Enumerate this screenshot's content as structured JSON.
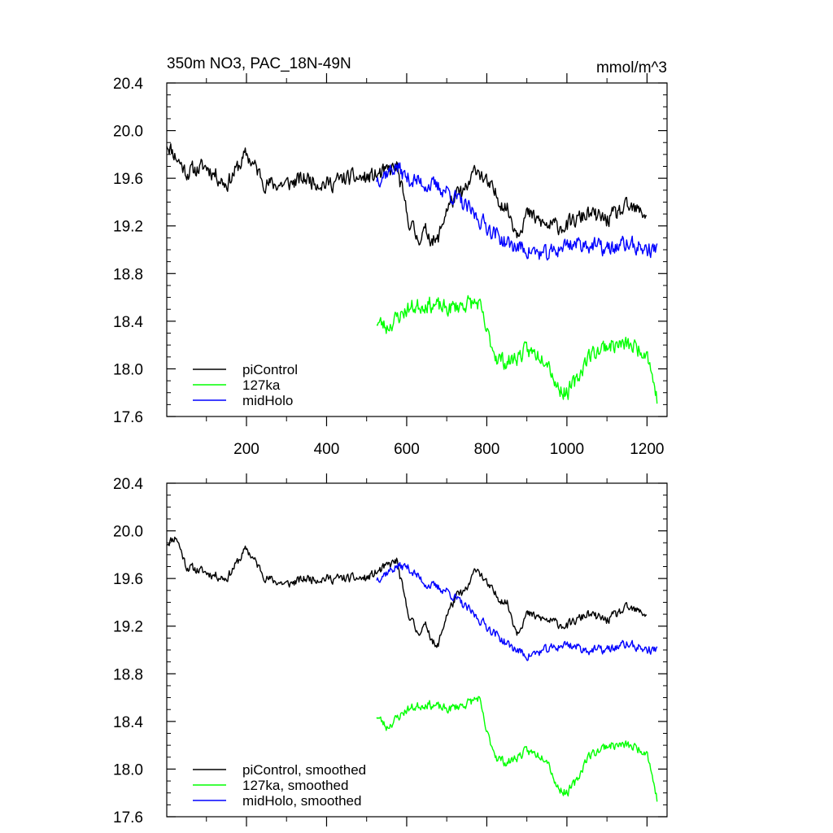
{
  "chart_data": [
    {
      "type": "line",
      "title": "350m NO3, PAC_18N-49N",
      "units": "mmol/m^3",
      "xlim": [
        1,
        1250
      ],
      "ylim": [
        17.6,
        20.4
      ],
      "yticks": [
        17.6,
        18.0,
        18.4,
        18.8,
        19.2,
        19.6,
        20.0,
        20.4
      ],
      "ytick_labels": [
        "17.6",
        "18.0",
        "18.4",
        "18.8",
        "19.2",
        "19.6",
        "20.0",
        "20.4"
      ],
      "xticks": [
        200,
        400,
        600,
        800,
        1000,
        1200
      ],
      "xtick_labels": [
        "200",
        "400",
        "600",
        "800",
        "1000",
        "1200"
      ],
      "legend_position": "bottom-left",
      "series": [
        {
          "name": "piControl",
          "color": "#000000",
          "x_range": [
            1,
            1200
          ],
          "knots": [
            [
              1,
              19.9
            ],
            [
              50,
              19.65
            ],
            [
              100,
              19.7
            ],
            [
              150,
              19.55
            ],
            [
              200,
              19.8
            ],
            [
              250,
              19.55
            ],
            [
              300,
              19.55
            ],
            [
              350,
              19.6
            ],
            [
              400,
              19.55
            ],
            [
              450,
              19.6
            ],
            [
              500,
              19.6
            ],
            [
              550,
              19.65
            ],
            [
              575,
              19.7
            ],
            [
              600,
              19.3
            ],
            [
              625,
              19.1
            ],
            [
              650,
              19.15
            ],
            [
              675,
              19.05
            ],
            [
              700,
              19.35
            ],
            [
              725,
              19.45
            ],
            [
              750,
              19.5
            ],
            [
              775,
              19.7
            ],
            [
              800,
              19.55
            ],
            [
              825,
              19.45
            ],
            [
              850,
              19.35
            ],
            [
              875,
              19.15
            ],
            [
              900,
              19.3
            ],
            [
              950,
              19.2
            ],
            [
              1000,
              19.2
            ],
            [
              1050,
              19.3
            ],
            [
              1100,
              19.25
            ],
            [
              1150,
              19.35
            ],
            [
              1200,
              19.3
            ]
          ],
          "noise": 0.11,
          "seed": 11
        },
        {
          "name": "127ka",
          "color": "#00ff00",
          "x_range": [
            525,
            1225
          ],
          "knots": [
            [
              525,
              18.4
            ],
            [
              550,
              18.35
            ],
            [
              600,
              18.5
            ],
            [
              650,
              18.55
            ],
            [
              700,
              18.5
            ],
            [
              750,
              18.55
            ],
            [
              780,
              18.55
            ],
            [
              800,
              18.3
            ],
            [
              825,
              18.1
            ],
            [
              850,
              18.05
            ],
            [
              900,
              18.15
            ],
            [
              950,
              18.1
            ],
            [
              975,
              17.85
            ],
            [
              1000,
              17.8
            ],
            [
              1025,
              17.9
            ],
            [
              1050,
              18.1
            ],
            [
              1100,
              18.2
            ],
            [
              1150,
              18.2
            ],
            [
              1200,
              18.15
            ],
            [
              1225,
              17.75
            ]
          ],
          "noise": 0.11,
          "seed": 23
        },
        {
          "name": "midHolo",
          "color": "#0000ff",
          "x_range": [
            525,
            1225
          ],
          "knots": [
            [
              525,
              19.6
            ],
            [
              550,
              19.65
            ],
            [
              575,
              19.7
            ],
            [
              600,
              19.6
            ],
            [
              650,
              19.55
            ],
            [
              700,
              19.5
            ],
            [
              750,
              19.35
            ],
            [
              800,
              19.2
            ],
            [
              850,
              19.05
            ],
            [
              900,
              19.0
            ],
            [
              950,
              18.95
            ],
            [
              1000,
              19.05
            ],
            [
              1050,
              19.05
            ],
            [
              1100,
              19.0
            ],
            [
              1150,
              19.05
            ],
            [
              1200,
              19.0
            ],
            [
              1225,
              19.0
            ]
          ],
          "noise": 0.11,
          "seed": 37
        }
      ]
    },
    {
      "type": "line",
      "title": "",
      "units": "",
      "xlim": [
        1,
        1250
      ],
      "ylim": [
        17.6,
        20.4
      ],
      "yticks": [
        17.6,
        18.0,
        18.4,
        18.8,
        19.2,
        19.6,
        20.0,
        20.4
      ],
      "ytick_labels": [
        "17.6",
        "18.0",
        "18.4",
        "18.8",
        "19.2",
        "19.6",
        "20.0",
        "20.4"
      ],
      "xticks": [
        200,
        400,
        600,
        800,
        1000,
        1200
      ],
      "xtick_labels": [],
      "legend_position": "bottom-left",
      "series": [
        {
          "name": "piControl, smoothed",
          "color": "#000000",
          "x_range": [
            1,
            1200
          ],
          "knots": [
            [
              1,
              19.9
            ],
            [
              25,
              19.95
            ],
            [
              50,
              19.7
            ],
            [
              100,
              19.65
            ],
            [
              150,
              19.6
            ],
            [
              200,
              19.85
            ],
            [
              250,
              19.6
            ],
            [
              300,
              19.55
            ],
            [
              350,
              19.6
            ],
            [
              400,
              19.6
            ],
            [
              450,
              19.6
            ],
            [
              500,
              19.6
            ],
            [
              550,
              19.7
            ],
            [
              575,
              19.75
            ],
            [
              600,
              19.35
            ],
            [
              625,
              19.15
            ],
            [
              650,
              19.2
            ],
            [
              675,
              19.0
            ],
            [
              700,
              19.3
            ],
            [
              725,
              19.45
            ],
            [
              750,
              19.5
            ],
            [
              775,
              19.7
            ],
            [
              800,
              19.55
            ],
            [
              825,
              19.45
            ],
            [
              850,
              19.4
            ],
            [
              875,
              19.15
            ],
            [
              900,
              19.3
            ],
            [
              950,
              19.25
            ],
            [
              1000,
              19.2
            ],
            [
              1050,
              19.3
            ],
            [
              1100,
              19.25
            ],
            [
              1150,
              19.35
            ],
            [
              1200,
              19.3
            ]
          ],
          "noise": 0.06,
          "seed": 11
        },
        {
          "name": "127ka, smoothed",
          "color": "#00ff00",
          "x_range": [
            525,
            1225
          ],
          "knots": [
            [
              525,
              18.45
            ],
            [
              550,
              18.35
            ],
            [
              600,
              18.5
            ],
            [
              650,
              18.55
            ],
            [
              700,
              18.5
            ],
            [
              750,
              18.55
            ],
            [
              780,
              18.6
            ],
            [
              800,
              18.3
            ],
            [
              825,
              18.1
            ],
            [
              850,
              18.05
            ],
            [
              900,
              18.15
            ],
            [
              950,
              18.1
            ],
            [
              975,
              17.85
            ],
            [
              1000,
              17.8
            ],
            [
              1025,
              17.9
            ],
            [
              1050,
              18.1
            ],
            [
              1100,
              18.2
            ],
            [
              1150,
              18.2
            ],
            [
              1200,
              18.15
            ],
            [
              1225,
              17.75
            ]
          ],
          "noise": 0.06,
          "seed": 23
        },
        {
          "name": "midHolo, smoothed",
          "color": "#0000ff",
          "x_range": [
            525,
            1225
          ],
          "knots": [
            [
              525,
              19.6
            ],
            [
              550,
              19.65
            ],
            [
              575,
              19.7
            ],
            [
              600,
              19.7
            ],
            [
              650,
              19.55
            ],
            [
              700,
              19.5
            ],
            [
              750,
              19.35
            ],
            [
              800,
              19.2
            ],
            [
              850,
              19.05
            ],
            [
              900,
              18.95
            ],
            [
              950,
              19.0
            ],
            [
              1000,
              19.05
            ],
            [
              1050,
              19.0
            ],
            [
              1100,
              19.0
            ],
            [
              1150,
              19.05
            ],
            [
              1200,
              19.0
            ],
            [
              1225,
              19.0
            ]
          ],
          "noise": 0.06,
          "seed": 37
        }
      ]
    }
  ]
}
